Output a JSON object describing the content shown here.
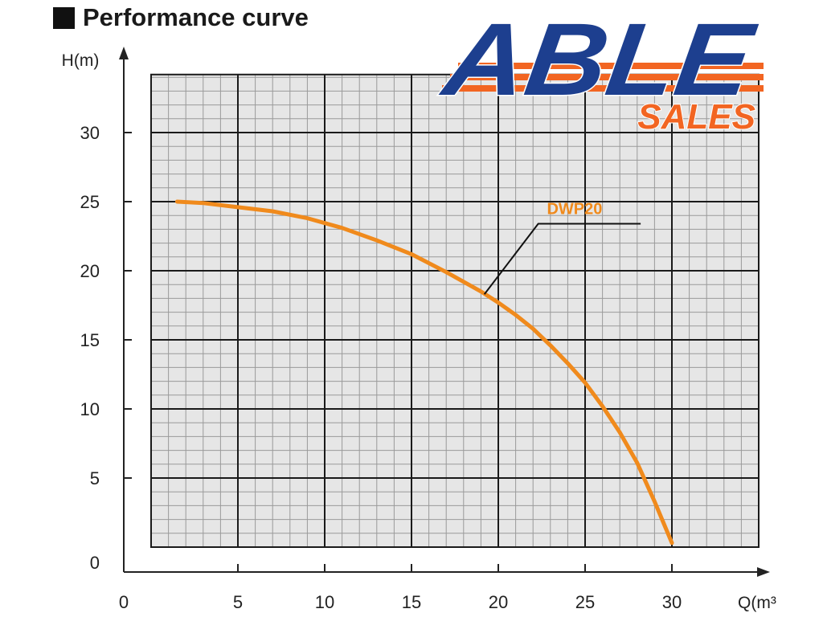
{
  "header": {
    "title": "Performance curve"
  },
  "logo": {
    "word": "ABLE",
    "sub": "SALES"
  },
  "colors": {
    "curve": "#f08a1c",
    "grid_major": "#1a1a1a",
    "grid_minor": "#9a9a9a",
    "plot_bg": "#e6e6e6",
    "logo_blue": "#1d3f8f",
    "logo_orange": "#f26522"
  },
  "chart_data": {
    "type": "line",
    "title": "Performance curve",
    "xlabel": "Q(m³",
    "ylabel": "H(m)",
    "xlim": [
      0,
      32
    ],
    "ylim": [
      0,
      33
    ],
    "x_ticks": [
      0,
      5,
      10,
      15,
      20,
      25,
      30
    ],
    "y_ticks": [
      0,
      5,
      10,
      15,
      20,
      25,
      30
    ],
    "grid": true,
    "series": [
      {
        "name": "DWP20",
        "x": [
          1.5,
          3,
          5,
          7,
          9,
          11,
          13,
          15,
          17,
          19,
          20,
          21,
          22,
          23,
          24,
          25,
          26,
          27,
          28,
          28.5,
          29,
          29.5,
          30
        ],
        "y": [
          25.0,
          24.9,
          24.6,
          24.3,
          23.8,
          23.1,
          22.2,
          21.2,
          19.9,
          18.5,
          17.7,
          16.8,
          15.8,
          14.6,
          13.3,
          11.9,
          10.2,
          8.3,
          6.1,
          4.7,
          3.3,
          1.8,
          0.3
        ]
      }
    ]
  }
}
